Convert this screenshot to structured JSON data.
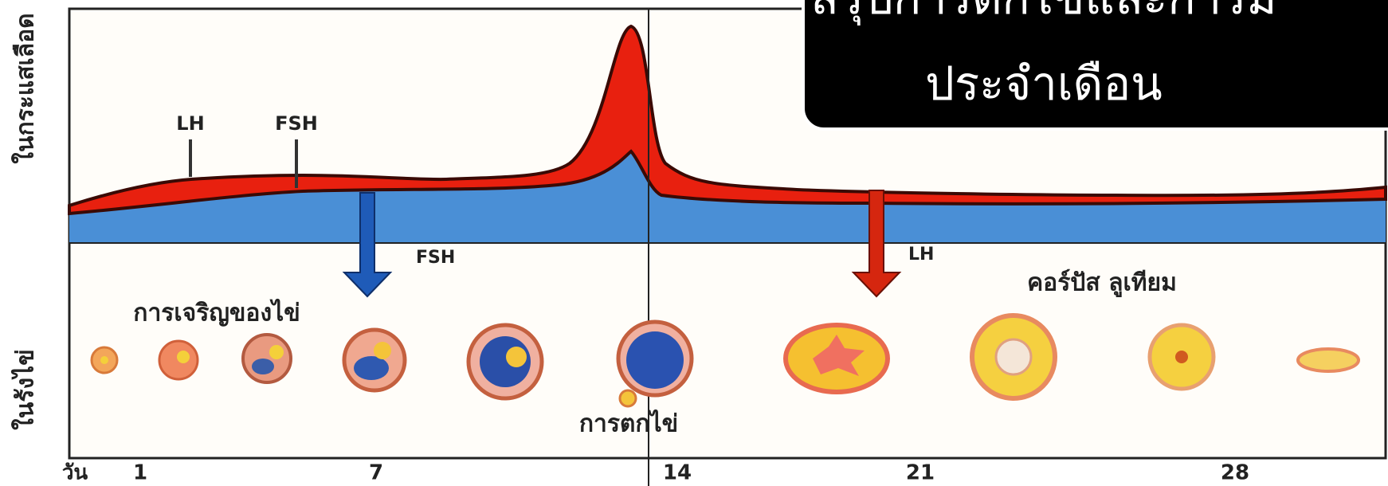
{
  "title_box": {
    "lines": [
      "สรุปการตกไข่และการมี",
      "ประจำเดือน"
    ]
  },
  "axis_labels": {
    "blood": "ในกระแสเลือด",
    "ovary": "ในรังไข่",
    "day": "วัน"
  },
  "day_ticks": [
    "1",
    "7",
    "14",
    "21",
    "28"
  ],
  "hormone_labels": {
    "lh": "LH",
    "fsh": "FSH"
  },
  "arrows": [
    {
      "label": "FSH"
    },
    {
      "label": "LH"
    }
  ],
  "stages": {
    "follicle": "การเจริญของไข่",
    "ovulation": "การตกไข่",
    "corpus_luteum": "คอร์ปัส ลูเทียม"
  }
}
